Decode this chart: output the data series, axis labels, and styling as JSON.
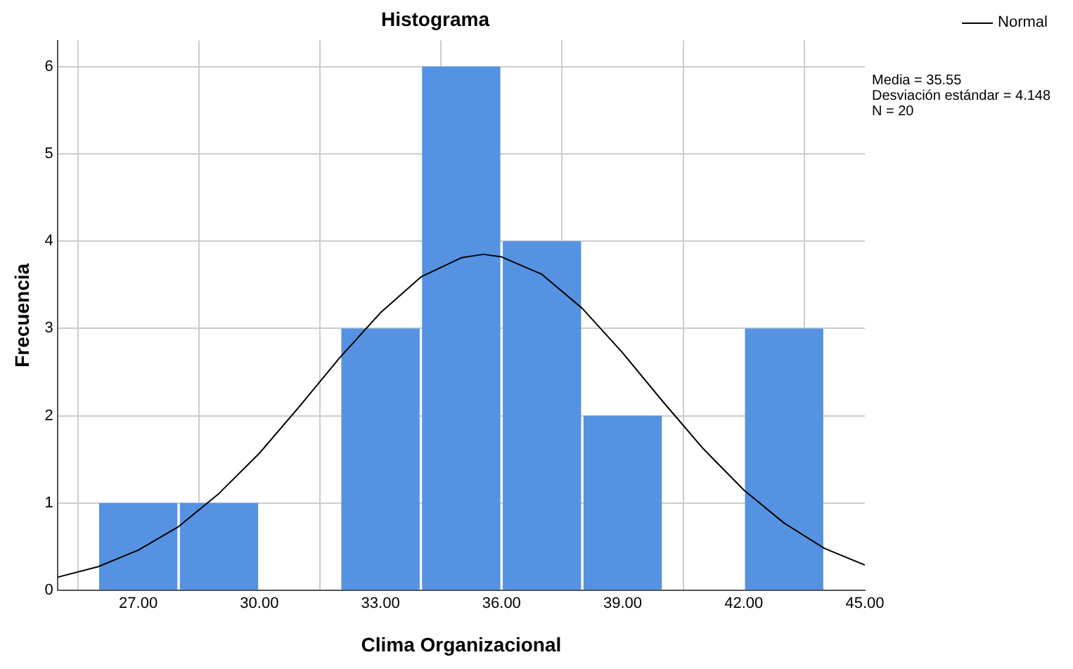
{
  "chart_data": {
    "type": "histogram",
    "title": "Histograma",
    "xlabel": "Clima Organizacional",
    "ylabel": "Frecuencia",
    "bins": [
      26,
      28,
      30,
      32,
      34,
      36,
      38,
      40,
      42,
      44
    ],
    "values": [
      1,
      1,
      0,
      3,
      6,
      4,
      2,
      0,
      3
    ],
    "color": "#5592e2",
    "series": [
      {
        "type": "line",
        "name": "Normal",
        "color": "#000000",
        "x": [
          25,
          26,
          27,
          28,
          29,
          30,
          31,
          32,
          33,
          34,
          35,
          35.55,
          36,
          37,
          38,
          39,
          40,
          41,
          42,
          43,
          44,
          45
        ],
        "values": [
          0.15,
          0.27,
          0.46,
          0.73,
          1.11,
          1.57,
          2.11,
          2.67,
          3.18,
          3.59,
          3.81,
          3.85,
          3.82,
          3.62,
          3.23,
          2.72,
          2.16,
          1.62,
          1.15,
          0.77,
          0.48,
          0.29
        ]
      }
    ],
    "xlim": [
      25,
      45
    ],
    "xticks": [
      {
        "value": 27,
        "label": "27.00"
      },
      {
        "value": 30,
        "label": "30.00"
      },
      {
        "value": 33,
        "label": "33.00"
      },
      {
        "value": 36,
        "label": "36.00"
      },
      {
        "value": 39,
        "label": "39.00"
      },
      {
        "value": 42,
        "label": "42.00"
      },
      {
        "value": 45,
        "label": "45.00"
      }
    ],
    "ylim": [
      0,
      6.3
    ],
    "yticks": [
      0,
      1,
      2,
      3,
      4,
      5,
      6
    ],
    "grid": true,
    "legend": "top right",
    "annotations": [
      "Media = 35.55",
      "Desviación estándar = 4.148",
      "N = 20"
    ]
  }
}
